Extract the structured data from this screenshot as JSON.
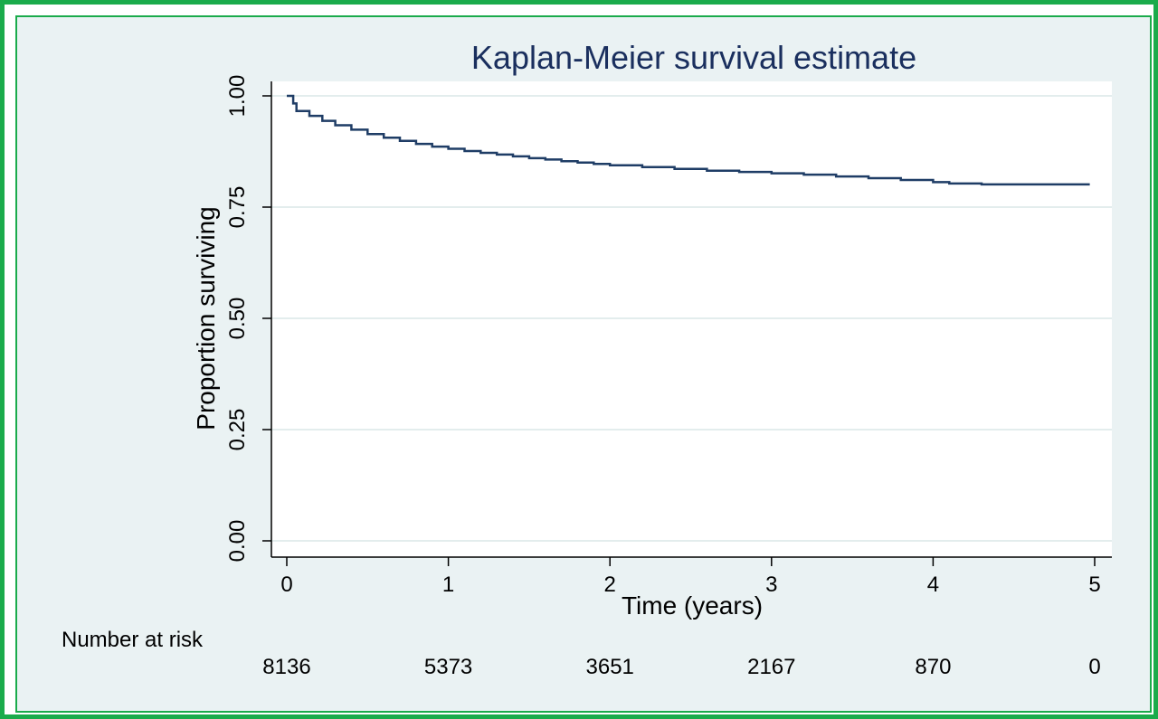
{
  "chart_data": {
    "type": "line",
    "title": "Kaplan-Meier survival estimate",
    "xlabel": "Time (years)",
    "ylabel": "Proportion surviving",
    "xlim": [
      0,
      5
    ],
    "ylim": [
      0,
      1
    ],
    "xticks": [
      "0",
      "1",
      "2",
      "3",
      "4",
      "5"
    ],
    "yticks": [
      "0.00",
      "0.25",
      "0.50",
      "0.75",
      "1.00"
    ],
    "grid": true,
    "risk_table": {
      "label": "Number at risk",
      "values": [
        "8136",
        "5373",
        "3651",
        "2167",
        "870",
        "0"
      ]
    },
    "series": [
      {
        "color": "#1f3d66",
        "step": true,
        "x": [
          0,
          0.03,
          0.04,
          0.06,
          0.12,
          0.14,
          0.2,
          0.22,
          0.3,
          0.4,
          0.5,
          0.6,
          0.7,
          0.8,
          0.9,
          1.0,
          1.1,
          1.2,
          1.3,
          1.4,
          1.5,
          1.6,
          1.7,
          1.8,
          1.9,
          2.0,
          2.2,
          2.4,
          2.6,
          2.8,
          3.0,
          3.2,
          3.4,
          3.6,
          3.8,
          4.0,
          4.1,
          4.3,
          4.97
        ],
        "y": [
          1.0,
          1.0,
          0.983,
          0.966,
          0.966,
          0.955,
          0.955,
          0.944,
          0.934,
          0.924,
          0.914,
          0.906,
          0.899,
          0.892,
          0.886,
          0.881,
          0.876,
          0.872,
          0.868,
          0.864,
          0.86,
          0.857,
          0.853,
          0.85,
          0.847,
          0.844,
          0.84,
          0.836,
          0.832,
          0.829,
          0.826,
          0.823,
          0.819,
          0.815,
          0.811,
          0.806,
          0.803,
          0.801,
          0.801
        ]
      }
    ]
  }
}
